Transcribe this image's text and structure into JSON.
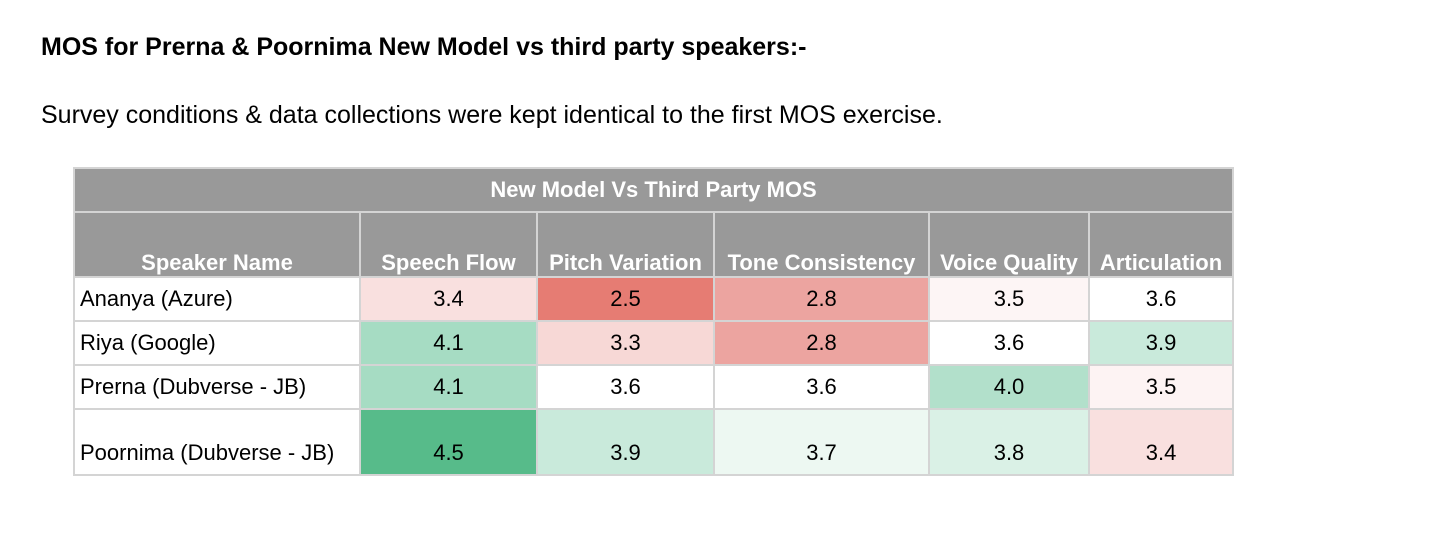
{
  "document": {
    "title": "MOS for Prerna & Poornima New Model vs third party speakers:-",
    "subtitle": "Survey conditions & data collections were kept identical to the first MOS exercise."
  },
  "table": {
    "caption": "New Model Vs Third Party MOS",
    "headers": [
      "Speaker Name",
      "Speech Flow",
      "Pitch Variation",
      "Tone Consistency",
      "Voice Quality",
      "Articulation"
    ],
    "rows": [
      {
        "name": "Ananya (Azure)",
        "values": [
          "3.4",
          "2.5",
          "2.8",
          "3.5",
          "3.6"
        ],
        "colors": [
          "#f9e0df",
          "#e67c73",
          "#eca4a0",
          "#fdf5f5",
          "#ffffff"
        ]
      },
      {
        "name": "Riya (Google)",
        "values": [
          "4.1",
          "3.3",
          "2.8",
          "3.6",
          "3.9"
        ],
        "colors": [
          "#a6dcc3",
          "#f7d8d6",
          "#eca4a0",
          "#ffffff",
          "#c9eadb"
        ]
      },
      {
        "name": "Prerna (Dubverse - JB)",
        "values": [
          "4.1",
          "3.6",
          "3.6",
          "4.0",
          "3.5"
        ],
        "colors": [
          "#a6dcc3",
          "#ffffff",
          "#ffffff",
          "#b2e0cb",
          "#fdf3f3"
        ]
      },
      {
        "name": "Poornima (Dubverse - JB)",
        "values": [
          "4.5",
          "3.9",
          "3.7",
          "3.8",
          "3.4"
        ],
        "colors": [
          "#57bb8a",
          "#c9eadb",
          "#edf8f2",
          "#daf1e6",
          "#f9e0df"
        ]
      }
    ]
  }
}
